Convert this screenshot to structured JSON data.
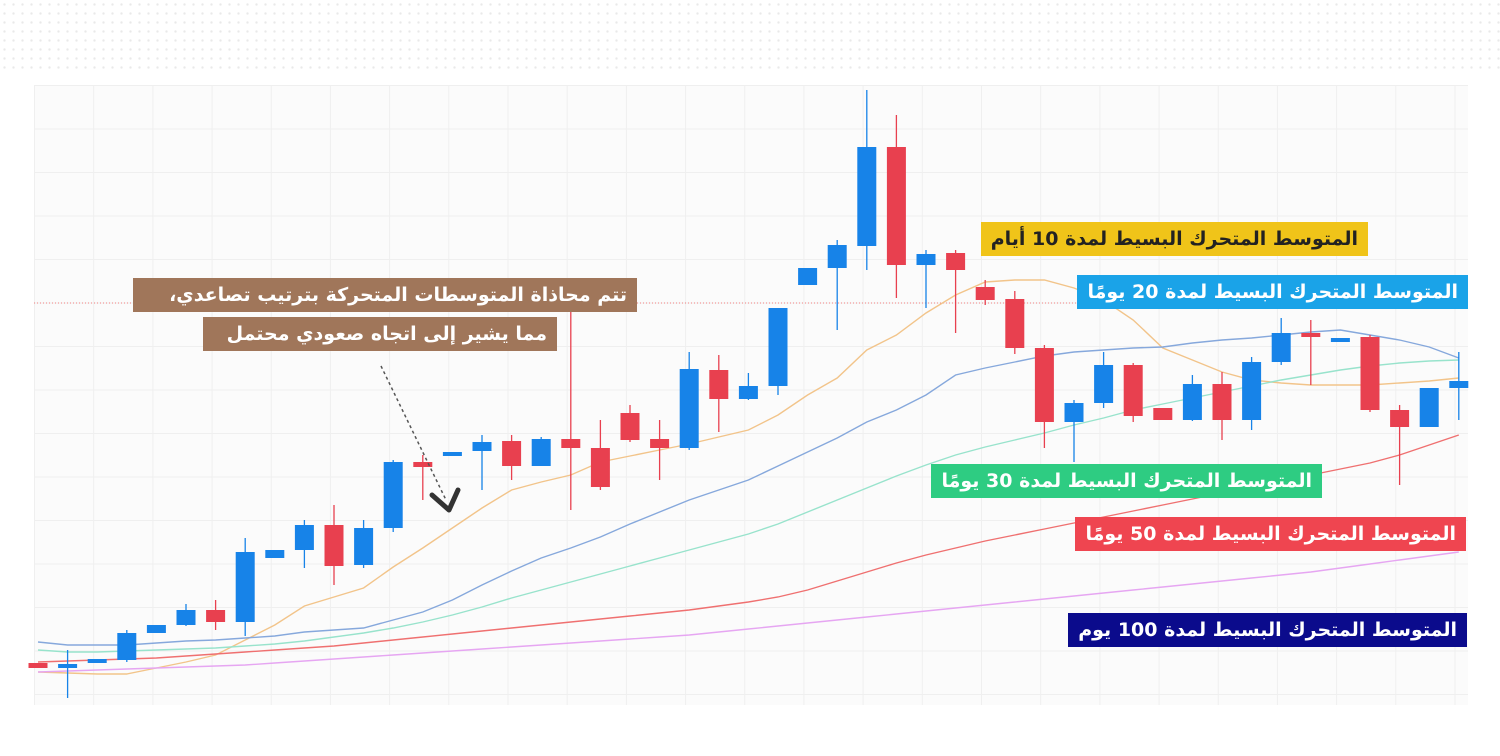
{
  "chart_data": {
    "type": "candlestick",
    "ylim": [
      0,
      620
    ],
    "up_color": "#1783e8",
    "down_color": "#e8404f",
    "annotations": [
      "تتم محاذاة المتوسطات المتحركة بترتيب تصاعدي،",
      "مما يشير إلى اتجاه صعودي محتمل"
    ],
    "open": [
      42,
      37,
      42,
      45,
      72,
      80,
      95,
      83,
      147,
      155,
      180,
      140,
      177,
      243,
      249,
      254,
      264,
      239,
      266,
      257,
      292,
      266,
      257,
      335,
      306,
      319,
      420,
      437,
      459,
      558,
      440,
      452,
      418,
      406,
      357,
      283,
      302,
      340,
      297,
      285,
      321,
      285,
      343,
      372,
      363,
      368,
      295,
      278,
      317
    ],
    "high": [
      42,
      55,
      46,
      75,
      80,
      101,
      105,
      167,
      155,
      185,
      200,
      185,
      245,
      250,
      253,
      270,
      270,
      268,
      405,
      285,
      300,
      285,
      353,
      350,
      332,
      397,
      437,
      465,
      615,
      590,
      455,
      455,
      425,
      414,
      360,
      305,
      353,
      342,
      297,
      330,
      333,
      348,
      387,
      385,
      367,
      370,
      300,
      317,
      353
    ],
    "low": [
      37,
      7,
      42,
      43,
      72,
      79,
      75,
      69,
      147,
      137,
      120,
      137,
      173,
      205,
      249,
      215,
      225,
      239,
      195,
      215,
      263,
      225,
      255,
      273,
      305,
      310,
      420,
      375,
      435,
      407,
      397,
      372,
      400,
      351,
      257,
      243,
      297,
      283,
      285,
      284,
      265,
      275,
      340,
      320,
      363,
      293,
      220,
      278,
      285
    ],
    "close": [
      37,
      41,
      46,
      72,
      80,
      95,
      83,
      153,
      155,
      180,
      139,
      177,
      243,
      238,
      253,
      263,
      239,
      266,
      257,
      218,
      265,
      257,
      336,
      306,
      319,
      397,
      437,
      460,
      558,
      440,
      451,
      435,
      405,
      357,
      283,
      302,
      340,
      289,
      285,
      321,
      285,
      343,
      372,
      368,
      367,
      295,
      278,
      317,
      324
    ],
    "series": [
      {
        "name": "المتوسط المتحرك البسيط لمدة 10 أيام",
        "color": "#f2c48a",
        "label_color": "#f0c419",
        "label_text_color": "#222222",
        "values": [
          33,
          32,
          31,
          31,
          37,
          43,
          50,
          65,
          80,
          99,
          108,
          117,
          138,
          157,
          177,
          197,
          215,
          223,
          230,
          243,
          249,
          255,
          261,
          268,
          275,
          290,
          310,
          327,
          355,
          370,
          392,
          410,
          423,
          425,
          425,
          417,
          405,
          385,
          357,
          345,
          333,
          325,
          322,
          320,
          320,
          320,
          322,
          324,
          327
        ]
      },
      {
        "name": "المتوسط المتحرك البسيط لمدة 20 يومًا",
        "color": "#86a8dc",
        "label_color": "#1aa3e8",
        "label_text_color": "#ffffff",
        "values": [
          63,
          60,
          60,
          60,
          62,
          64,
          65,
          67,
          69,
          73,
          75,
          77,
          85,
          93,
          105,
          120,
          134,
          147,
          157,
          168,
          181,
          193,
          205,
          215,
          225,
          239,
          253,
          267,
          283,
          295,
          310,
          330,
          337,
          343,
          349,
          353,
          355,
          357,
          358,
          362,
          365,
          367,
          370,
          373,
          375,
          370,
          365,
          358,
          347
        ]
      },
      {
        "name": "المتوسط المتحرك البسيط لمدة 30 يومًا",
        "color": "#98e3cc",
        "label_color": "#2ecc82",
        "label_text_color": "#ffffff",
        "values": [
          55,
          53,
          53,
          54,
          55,
          56,
          57,
          59,
          61,
          64,
          68,
          72,
          77,
          83,
          90,
          98,
          107,
          115,
          123,
          131,
          139,
          147,
          155,
          163,
          171,
          181,
          193,
          205,
          217,
          229,
          240,
          250,
          258,
          265,
          272,
          280,
          287,
          295,
          301,
          307,
          313,
          319,
          325,
          330,
          335,
          339,
          342,
          344,
          345
        ]
      },
      {
        "name": "المتوسط المتحرك البسيط لمدة 50 يومًا",
        "color": "#ef7070",
        "label_color": "#ef4550",
        "label_text_color": "#ffffff",
        "values": [
          43,
          44,
          45,
          46,
          47,
          49,
          51,
          53,
          55,
          57,
          59,
          62,
          65,
          68,
          71,
          74,
          77,
          80,
          83,
          86,
          89,
          92,
          95,
          99,
          103,
          108,
          115,
          124,
          133,
          142,
          150,
          157,
          164,
          170,
          176,
          182,
          188,
          194,
          200,
          206,
          212,
          218,
          224,
          230,
          236,
          242,
          250,
          260,
          270
        ]
      },
      {
        "name": "المتوسط المتحرك البسيط لمدة 100 يوم",
        "color": "#e6a6f2",
        "label_color": "#0b0b8c",
        "label_text_color": "#ffffff",
        "values": [
          33,
          34,
          35,
          36,
          37,
          38,
          39,
          40,
          42,
          44,
          46,
          48,
          50,
          52,
          54,
          56,
          58,
          60,
          62,
          64,
          66,
          68,
          70,
          73,
          76,
          79,
          82,
          85,
          88,
          91,
          94,
          97,
          100,
          103,
          106,
          109,
          112,
          115,
          118,
          121,
          124,
          127,
          130,
          133,
          137,
          141,
          145,
          149,
          153
        ]
      }
    ]
  }
}
